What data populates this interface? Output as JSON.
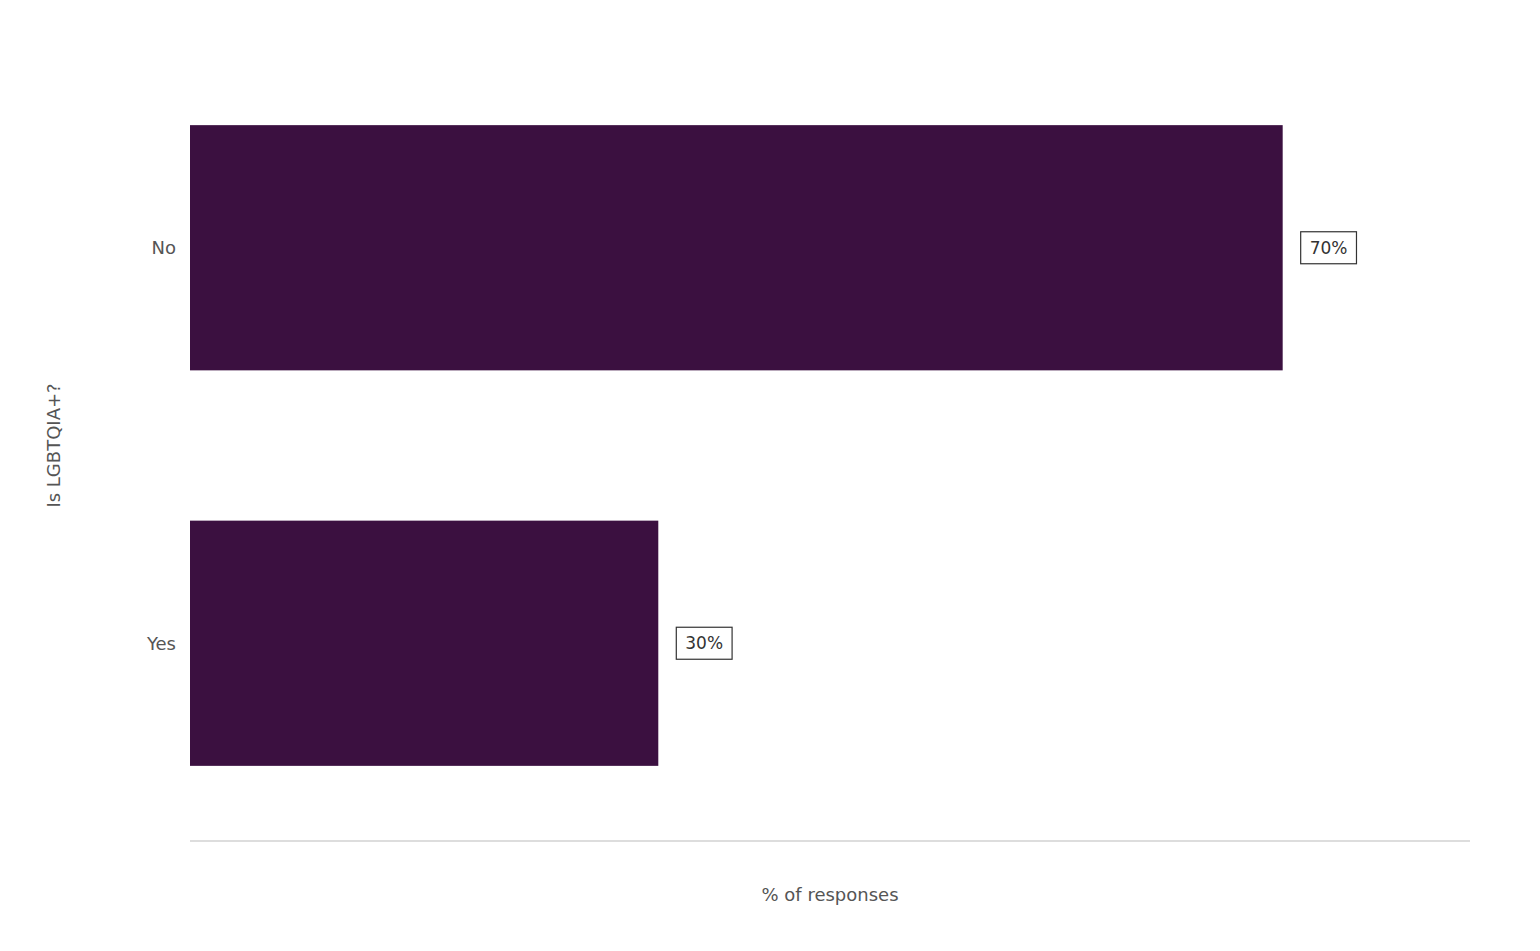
{
  "chart_data": {
    "type": "bar",
    "orientation": "horizontal",
    "categories": [
      "No",
      "Yes"
    ],
    "values": [
      70,
      30
    ],
    "value_labels": [
      "70%",
      "30%"
    ],
    "data_labels": true,
    "color": "#3b1040",
    "xlabel": "% of responses",
    "ylabel": "Is LGBTQIA+?",
    "xlim": [
      0,
      82
    ],
    "tick_labels": "y",
    "grid": false
  }
}
